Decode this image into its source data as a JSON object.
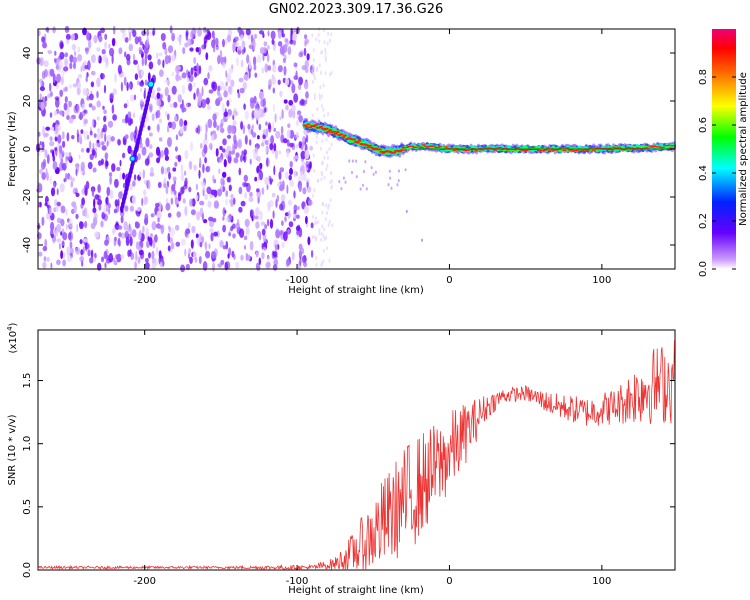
{
  "figure": {
    "title": "GN02.2023.309.17.36.G26"
  },
  "chart_data": [
    {
      "type": "heatmap",
      "xlabel": "Height of straight line (km)",
      "ylabel": "Frequency (Hz)",
      "xlim": [
        -270,
        148
      ],
      "ylim": [
        -50,
        50
      ],
      "x_ticks": [
        -200,
        -100,
        0,
        100
      ],
      "y_ticks": [
        40,
        20,
        0,
        -20,
        -40
      ],
      "x_tick_labels": [
        "-200",
        "-100",
        "0",
        "100"
      ],
      "y_tick_labels": [
        "40",
        "20",
        "0",
        "-20",
        "-40"
      ],
      "noise_region_x": [
        -270,
        -90
      ],
      "ridge": {
        "description_points_x": [
          -95,
          -85,
          -75,
          -65,
          -55,
          -45,
          -35,
          -25,
          -15,
          0,
          50,
          100,
          148
        ],
        "frequency_hz": [
          10,
          9,
          7,
          4,
          2,
          -1,
          -1,
          1,
          1,
          0,
          0,
          0,
          1
        ]
      },
      "diagonal_feature": {
        "x": [
          -215,
          -195
        ],
        "y": [
          -25,
          28
        ]
      },
      "colorbar": {
        "label": "Normalized spectral amplitude",
        "ticks": [
          0.0,
          0.2,
          0.4,
          0.6,
          0.8
        ],
        "tick_labels": [
          "0.0",
          "0.2",
          "0.4",
          "0.6",
          "0.8"
        ],
        "range": [
          0,
          1
        ]
      },
      "grid": false
    },
    {
      "type": "line",
      "xlabel": "Height of straight line (km)",
      "ylabel": "SNR (10 * v/v)",
      "scale_label_base": "(x10",
      "scale_label_exp": "4",
      "scale_label_close": ")",
      "xlim": [
        -270,
        148
      ],
      "ylim": [
        0,
        1.9
      ],
      "x_ticks": [
        -200,
        -100,
        0,
        100
      ],
      "y_ticks": [
        0.0,
        0.5,
        1.0,
        1.5
      ],
      "x_tick_labels": [
        "-200",
        "-100",
        "0",
        "100"
      ],
      "y_tick_labels": [
        "0.0",
        "0.5",
        "1.0",
        "1.5"
      ],
      "color": "#ee3333",
      "envelope": {
        "x": [
          -270,
          -150,
          -90,
          -75,
          -65,
          -55,
          -45,
          -35,
          -25,
          -15,
          -5,
          5,
          15,
          25,
          35,
          50,
          70,
          90,
          110,
          130,
          148
        ],
        "mean": [
          0.02,
          0.02,
          0.02,
          0.05,
          0.12,
          0.22,
          0.35,
          0.48,
          0.6,
          0.72,
          0.85,
          1.0,
          1.15,
          1.3,
          1.38,
          1.4,
          1.3,
          1.25,
          1.3,
          1.45,
          1.5
        ],
        "spread": [
          0.01,
          0.01,
          0.02,
          0.05,
          0.15,
          0.25,
          0.35,
          0.4,
          0.45,
          0.4,
          0.35,
          0.3,
          0.2,
          0.1,
          0.06,
          0.06,
          0.1,
          0.12,
          0.15,
          0.3,
          0.35
        ]
      },
      "grid": false
    }
  ]
}
